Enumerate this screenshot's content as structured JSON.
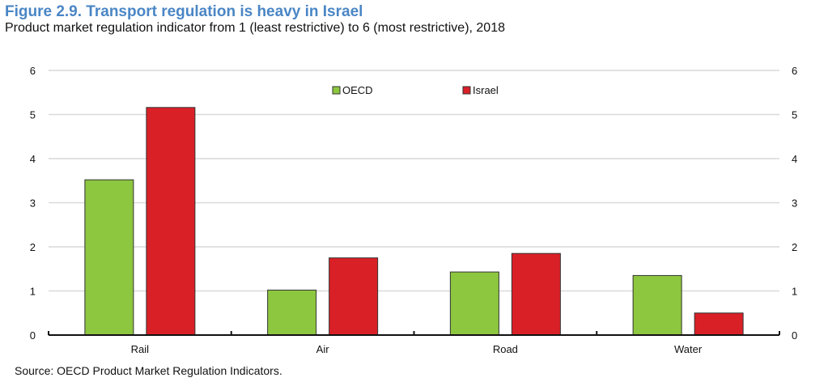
{
  "header": {
    "title": "Figure 2.9. Transport regulation is heavy in Israel",
    "subtitle": "Product market regulation indicator from 1 (least restrictive) to 6 (most restrictive), 2018"
  },
  "footer": {
    "source": "Source: OECD Product Market Regulation Indicators."
  },
  "chart_data": {
    "type": "bar",
    "title": "Figure 2.9. Transport regulation is heavy in Israel",
    "subtitle": "Product market regulation indicator from 1 (least restrictive) to 6 (most restrictive), 2018",
    "xlabel": "",
    "ylabel": "",
    "categories": [
      "Rail",
      "Air",
      "Road",
      "Water"
    ],
    "series": [
      {
        "name": "OECD",
        "color": "#8dc63f",
        "values": [
          3.52,
          1.02,
          1.43,
          1.35
        ]
      },
      {
        "name": "Israel",
        "color": "#d92027",
        "values": [
          5.16,
          1.75,
          1.85,
          0.5
        ]
      }
    ],
    "ylim": [
      0,
      6
    ],
    "yticks": [
      "0",
      "1",
      "2",
      "3",
      "4",
      "5",
      "6"
    ],
    "secondary_yaxis": true,
    "grid": true,
    "legend_position": "top-center"
  }
}
